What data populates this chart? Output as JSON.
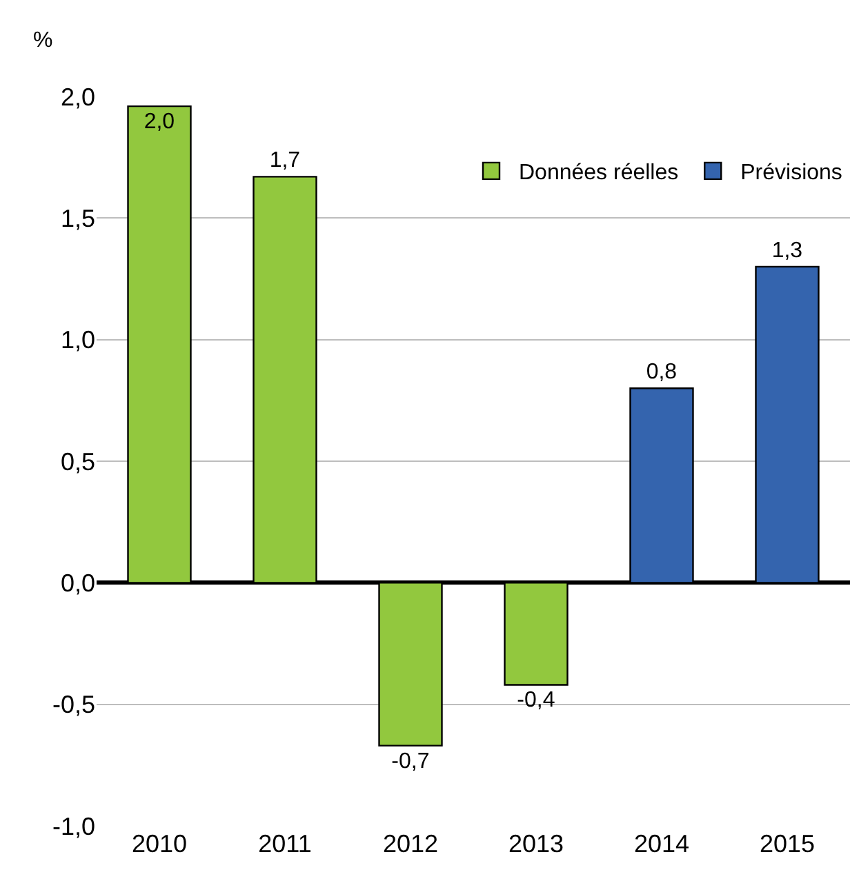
{
  "chart_data": {
    "type": "bar",
    "ylabel": "%",
    "categories": [
      "2010",
      "2011",
      "2012",
      "2013",
      "2014",
      "2015"
    ],
    "series": [
      {
        "name": "Données réelles",
        "color": "#92c83e",
        "values": [
          1.96,
          1.67,
          -0.67,
          -0.42,
          null,
          null
        ],
        "value_labels": [
          "2,0",
          "1,7",
          "-0,7",
          "-0,4",
          null,
          null
        ]
      },
      {
        "name": "Prévisions",
        "color": "#3464ae",
        "values": [
          null,
          null,
          null,
          null,
          0.8,
          1.3
        ],
        "value_labels": [
          null,
          null,
          null,
          null,
          "0,8",
          "1,3"
        ]
      }
    ],
    "ylim": [
      -1.0,
      2.0
    ],
    "yticks": [
      {
        "value": -1.0,
        "label": "-1,0"
      },
      {
        "value": -0.5,
        "label": "-0,5"
      },
      {
        "value": 0.0,
        "label": "0,0"
      },
      {
        "value": 0.5,
        "label": "0,5"
      },
      {
        "value": 1.0,
        "label": "1,0"
      },
      {
        "value": 1.5,
        "label": "1,5"
      },
      {
        "value": 2.0,
        "label": "2,0"
      }
    ],
    "grid": "y",
    "legend": "top right"
  }
}
